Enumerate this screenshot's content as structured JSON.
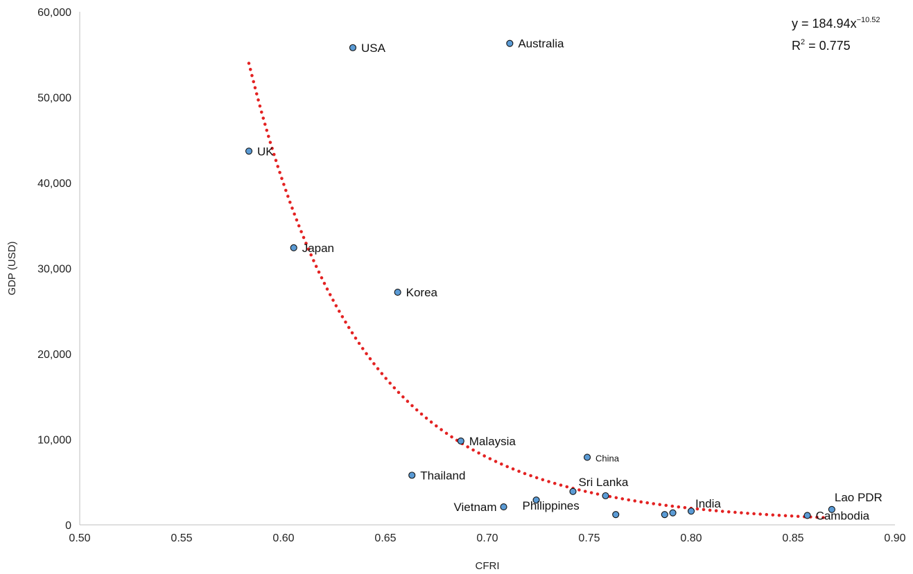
{
  "chart_data": {
    "type": "scatter",
    "xlabel": "CFRI",
    "ylabel": "GDP (USD)",
    "xlim": [
      0.5,
      0.9
    ],
    "ylim": [
      0,
      60000
    ],
    "x_ticks": [
      "0.50",
      "0.55",
      "0.60",
      "0.65",
      "0.70",
      "0.75",
      "0.80",
      "0.85",
      "0.90"
    ],
    "y_ticks": [
      "0",
      "10,000",
      "20,000",
      "30,000",
      "40,000",
      "50,000",
      "60,000"
    ],
    "grid": false,
    "marker_color": "#5b9bd5",
    "trend_color": "#e32222",
    "points": [
      {
        "x": 0.634,
        "y": 55800,
        "label": "USA"
      },
      {
        "x": 0.711,
        "y": 56300,
        "label": "Australia"
      },
      {
        "x": 0.583,
        "y": 43700,
        "label": "UK"
      },
      {
        "x": 0.605,
        "y": 32400,
        "label": "Japan"
      },
      {
        "x": 0.656,
        "y": 27200,
        "label": "Korea"
      },
      {
        "x": 0.687,
        "y": 9800,
        "label": "Malaysia"
      },
      {
        "x": 0.749,
        "y": 7900,
        "label": "China"
      },
      {
        "x": 0.663,
        "y": 5800,
        "label": "Thailand"
      },
      {
        "x": 0.742,
        "y": 3900,
        "label": "Sri Lanka"
      },
      {
        "x": 0.758,
        "y": 3400,
        "label": ""
      },
      {
        "x": 0.724,
        "y": 2900,
        "label": "Philippines"
      },
      {
        "x": 0.708,
        "y": 2100,
        "label": "Vietnam"
      },
      {
        "x": 0.8,
        "y": 1600,
        "label": "India"
      },
      {
        "x": 0.763,
        "y": 1200,
        "label": ""
      },
      {
        "x": 0.787,
        "y": 1200,
        "label": ""
      },
      {
        "x": 0.791,
        "y": 1400,
        "label": ""
      },
      {
        "x": 0.857,
        "y": 1100,
        "label": "Cambodia"
      },
      {
        "x": 0.869,
        "y": 1800,
        "label": "Lao PDR"
      }
    ],
    "trendline": {
      "type": "power",
      "coefficient": 184.94,
      "exponent": -10.52,
      "x_range": [
        0.583,
        0.866
      ],
      "equation_base": "y = 184.94x",
      "equation_exponent": "−10.52",
      "r2_base": "R",
      "r2_sup": "2",
      "r2_value": " = 0.775"
    }
  }
}
